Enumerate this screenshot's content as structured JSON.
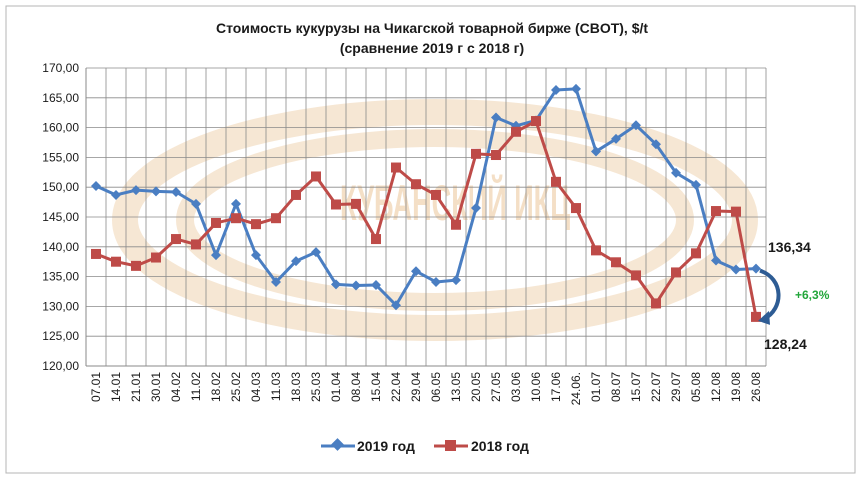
{
  "chart_data": {
    "type": "line",
    "title_line1": "Стоимость кукурузы на Чикагской товарной бирже (CBOT), $/t",
    "title_line2": "(сравнение 2019 г с 2018 г)",
    "categories": [
      "07.01",
      "14.01",
      "21.01",
      "30.01",
      "04.02",
      "11.02",
      "18.02",
      "25.02",
      "04.03",
      "11.03",
      "18.03",
      "25.03",
      "01.04",
      "08.04",
      "15.04",
      "22.04",
      "29.04",
      "06.05",
      "13.05",
      "20.05",
      "27.05",
      "03.06",
      "10.06",
      "17.06",
      "24.06.",
      "01.07",
      "08.07",
      "15.07",
      "22.07",
      "29.07",
      "05.08",
      "12.08",
      "19.08",
      "26.08"
    ],
    "ylim": [
      120,
      170
    ],
    "yticks": [
      "120,00",
      "125,00",
      "130,00",
      "135,00",
      "140,00",
      "145,00",
      "150,00",
      "155,00",
      "160,00",
      "165,00",
      "170,00"
    ],
    "grid": true,
    "series": [
      {
        "name": "2019 год",
        "color": "#4a7ec2",
        "marker": "diamond",
        "values": [
          150.2,
          148.7,
          149.5,
          149.3,
          149.2,
          147.2,
          138.6,
          147.2,
          138.6,
          134.1,
          137.6,
          139.1,
          133.7,
          133.5,
          133.6,
          130.2,
          135.9,
          134.1,
          134.4,
          146.5,
          161.7,
          160.3,
          161.2,
          166.3,
          166.5,
          156.0,
          158.1,
          160.4,
          157.2,
          152.4,
          150.4,
          137.7,
          136.2,
          136.34
        ]
      },
      {
        "name": "2018 год",
        "color": "#be4b48",
        "marker": "square",
        "values": [
          138.8,
          137.5,
          136.8,
          138.2,
          141.3,
          140.4,
          144.0,
          144.8,
          143.8,
          144.8,
          148.7,
          151.8,
          147.1,
          147.2,
          141.3,
          153.3,
          150.5,
          148.7,
          143.7,
          155.6,
          155.4,
          159.3,
          161.1,
          150.9,
          146.5,
          139.4,
          137.4,
          135.2,
          130.5,
          135.7,
          138.9,
          146.0,
          145.9,
          128.24
        ]
      }
    ],
    "legend_position": "bottom",
    "annotations": {
      "value_2019": "136,34",
      "value_2018": "128,24",
      "change": "+6,3%"
    },
    "watermark": "КУБАНСКИЙ ИКЦ"
  },
  "colors": {
    "axis": "#8a8a8a",
    "grid": "#8a8a8a",
    "arrow": "#2e5c94",
    "change_text": "#22a63a",
    "watermark": "#f3dcc0"
  }
}
